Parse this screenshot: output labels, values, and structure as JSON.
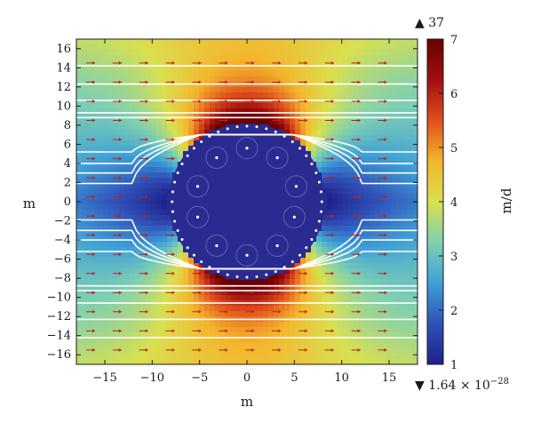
{
  "chart_data": {
    "type": "heatmap",
    "xlabel": "m",
    "ylabel": "m",
    "xlim": [
      -18,
      18
    ],
    "ylim": [
      -17,
      17
    ],
    "x_ticks": [
      -15,
      -10,
      -5,
      0,
      5,
      10,
      15
    ],
    "y_ticks": [
      -16,
      -14,
      -12,
      -10,
      -8,
      -6,
      -4,
      -2,
      0,
      2,
      4,
      6,
      8,
      10,
      12,
      14,
      16
    ],
    "colorbar": {
      "label": "m/d",
      "range": [
        1,
        7
      ],
      "ticks": [
        1,
        2,
        3,
        4,
        5,
        6,
        7
      ],
      "max_marker": "37",
      "min_marker": "1.64 × 10",
      "min_marker_exponent": "−28",
      "colormap": [
        "#20208a",
        "#3050b8",
        "#3ea0d8",
        "#7fd0b0",
        "#d8e050",
        "#f4b52c",
        "#e0501c",
        "#a01010",
        "#6a0000"
      ]
    },
    "tunnel": {
      "center": [
        0,
        0
      ],
      "radius": 8.2,
      "fill": "#2a2b90"
    },
    "boreholes": [
      [
        -3.2,
        4.6
      ],
      [
        0,
        5.6
      ],
      [
        3.2,
        4.6
      ],
      [
        -5.2,
        1.6
      ],
      [
        5.2,
        1.6
      ],
      [
        -5.2,
        -1.6
      ],
      [
        -3.2,
        -4.6
      ],
      [
        0,
        -5.6
      ],
      [
        3.2,
        -4.6
      ],
      [
        5.0,
        -1.6
      ]
    ]
  }
}
